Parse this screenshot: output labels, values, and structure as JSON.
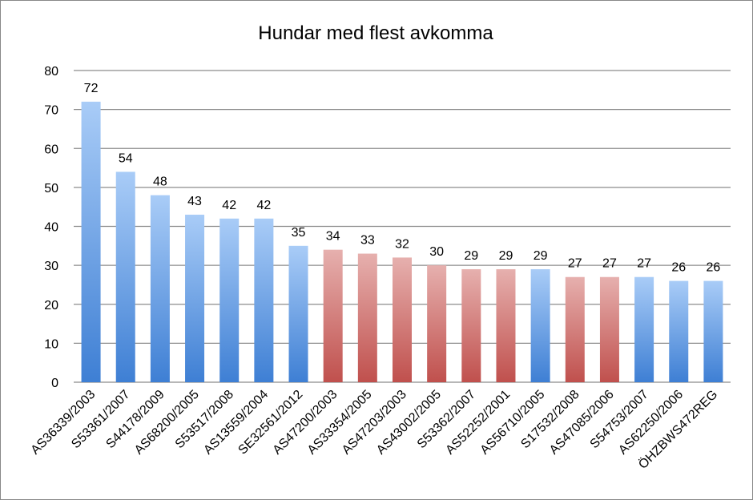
{
  "chart_data": {
    "type": "bar",
    "title": "Hundar med flest avkomma",
    "xlabel": "",
    "ylabel": "",
    "ylim": [
      0,
      80
    ],
    "yticks": [
      0,
      10,
      20,
      30,
      40,
      50,
      60,
      70,
      80
    ],
    "grid": true,
    "legend": "none",
    "colors": {
      "blue_top": "#a9ccf7",
      "blue_bottom": "#3e7fd4",
      "red_top": "#e6b0ae",
      "red_bottom": "#c0504d"
    },
    "categories": [
      "AS36339/2003",
      "S53361/2007",
      "S44178/2009",
      "AS68200/2005",
      "S53517/2008",
      "AS13559/2004",
      "SE32561/2012",
      "AS47200/2003",
      "AS33354/2005",
      "AS47203/2003",
      "AS43002/2005",
      "S53362/2007",
      "AS52252/2001",
      "AS56710/2005",
      "S17532/2008",
      "AS47085/2006",
      "S54753/2007",
      "AS62250/2006",
      "ÖHZBWS472REG"
    ],
    "values": [
      72,
      54,
      48,
      43,
      42,
      42,
      35,
      34,
      33,
      32,
      30,
      29,
      29,
      29,
      27,
      27,
      27,
      26,
      26
    ],
    "bar_colors": [
      "blue",
      "blue",
      "blue",
      "blue",
      "blue",
      "blue",
      "blue",
      "red",
      "red",
      "red",
      "red",
      "red",
      "red",
      "blue",
      "red",
      "red",
      "blue",
      "blue",
      "blue"
    ]
  }
}
